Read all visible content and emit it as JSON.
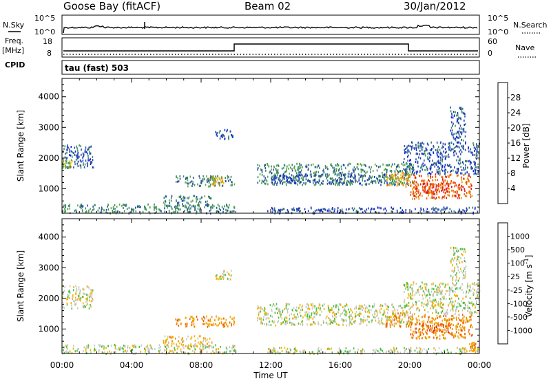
{
  "header": {
    "station": "Goose Bay (fitACF)",
    "beam": "Beam 02",
    "date": "30/Jan/2012"
  },
  "status_panels": {
    "nsky_label": "N.Sky",
    "nsky_top": "10^5",
    "nsky_bottom": "10^0",
    "nsearch_label": "N.Search",
    "nsearch_top": "10^5",
    "nsearch_bottom": "10^0",
    "freq_label": "Freq.",
    "freq_unit": "[MHz]",
    "freq_top": "18",
    "freq_bottom": "8",
    "nave_label": "Nave",
    "nave_top": "60",
    "nave_bottom": "0",
    "cpid_label": "CPID",
    "cpid_value": "tau (fast) 503"
  },
  "colors": {
    "power": [
      "#1428d2",
      "#2a4ea8",
      "#3c8a63",
      "#5aa84a",
      "#e8c000",
      "#f09000",
      "#e85a00",
      "#e21b1b"
    ],
    "velocity": [
      "#e21b1b",
      "#f05a00",
      "#f09000",
      "#f0b000",
      "#c8c8c0",
      "#44c040",
      "#3a8060",
      "#2a4ea8",
      "#1428d2"
    ]
  },
  "chart_data": [
    {
      "type": "heatmap",
      "name": "power",
      "ylabel": "Slant Range [km]",
      "yticks": [
        "1000",
        "2000",
        "3000",
        "4000"
      ],
      "ylim": [
        200,
        4600
      ],
      "xlim": [
        0,
        24
      ],
      "colorbar_label": "Power [dB]",
      "colorbar_ticks": [
        "4",
        "8",
        "12",
        "16",
        "20",
        "24",
        "28"
      ],
      "echo_regions": [
        {
          "t0": 0.0,
          "t1": 1.8,
          "r0": 1700,
          "r1": 2450,
          "level": 1
        },
        {
          "t0": 0.0,
          "t1": 0.6,
          "r0": 1700,
          "r1": 2000,
          "level": 3
        },
        {
          "t0": 6.5,
          "t1": 9.9,
          "r0": 1100,
          "r1": 1450,
          "level": 2
        },
        {
          "t0": 8.4,
          "t1": 9.3,
          "r0": 1150,
          "r1": 1400,
          "level": 4
        },
        {
          "t0": 5.8,
          "t1": 8.6,
          "r0": 450,
          "r1": 800,
          "level": 2
        },
        {
          "t0": 0.0,
          "t1": 10.0,
          "r0": 220,
          "r1": 520,
          "level": 2
        },
        {
          "t0": 8.8,
          "t1": 9.8,
          "r0": 2650,
          "r1": 2950,
          "level": 1
        },
        {
          "t0": 11.2,
          "t1": 20.2,
          "r0": 1150,
          "r1": 1850,
          "level": 2
        },
        {
          "t0": 12.0,
          "t1": 19.0,
          "r0": 1200,
          "r1": 1500,
          "level": 1
        },
        {
          "t0": 18.6,
          "t1": 20.0,
          "r0": 1100,
          "r1": 1550,
          "level": 5
        },
        {
          "t0": 20.0,
          "t1": 23.6,
          "r0": 700,
          "r1": 1500,
          "level": 6
        },
        {
          "t0": 20.3,
          "t1": 22.3,
          "r0": 850,
          "r1": 1200,
          "level": 7
        },
        {
          "t0": 19.6,
          "t1": 24.0,
          "r0": 1500,
          "r1": 2550,
          "level": 1
        },
        {
          "t0": 22.3,
          "t1": 23.2,
          "r0": 2600,
          "r1": 3700,
          "level": 1
        },
        {
          "t0": 11.8,
          "t1": 24.0,
          "r0": 220,
          "r1": 420,
          "level": 1
        }
      ]
    },
    {
      "type": "heatmap",
      "name": "velocity",
      "ylabel": "Slant Range [km]",
      "yticks": [
        "1000",
        "2000",
        "3000",
        "4000"
      ],
      "ylim": [
        200,
        4600
      ],
      "xlim": [
        0,
        24
      ],
      "xticks": [
        "00:00",
        "04:00",
        "08:00",
        "12:00",
        "16:00",
        "20:00",
        "00:00"
      ],
      "xlabel": "Time UT",
      "colorbar_label": "Velocity [m s^-1]",
      "colorbar_ticks": [
        "1000",
        "500",
        "100",
        "25",
        "-25",
        "-100",
        "-500",
        "-1000"
      ],
      "echo_regions": [
        {
          "t0": 0.0,
          "t1": 1.8,
          "r0": 1700,
          "r1": 2450,
          "level": 4
        },
        {
          "t0": 6.5,
          "t1": 9.9,
          "r0": 1100,
          "r1": 1450,
          "level": 2
        },
        {
          "t0": 5.8,
          "t1": 8.6,
          "r0": 450,
          "r1": 800,
          "level": 3
        },
        {
          "t0": 0.0,
          "t1": 10.0,
          "r0": 220,
          "r1": 520,
          "level": 4
        },
        {
          "t0": 8.8,
          "t1": 9.8,
          "r0": 2650,
          "r1": 2950,
          "level": 4
        },
        {
          "t0": 11.2,
          "t1": 20.2,
          "r0": 1150,
          "r1": 1850,
          "level": 4
        },
        {
          "t0": 18.6,
          "t1": 20.0,
          "r0": 1100,
          "r1": 1550,
          "level": 2
        },
        {
          "t0": 20.0,
          "t1": 23.6,
          "r0": 700,
          "r1": 1500,
          "level": 2
        },
        {
          "t0": 20.3,
          "t1": 22.3,
          "r0": 850,
          "r1": 1200,
          "level": 1
        },
        {
          "t0": 19.6,
          "t1": 24.0,
          "r0": 1500,
          "r1": 2550,
          "level": 4
        },
        {
          "t0": 22.3,
          "t1": 23.2,
          "r0": 2600,
          "r1": 3700,
          "level": 4
        },
        {
          "t0": 23.4,
          "t1": 23.8,
          "r0": 300,
          "r1": 600,
          "level": 2
        },
        {
          "t0": 11.8,
          "t1": 24.0,
          "r0": 220,
          "r1": 420,
          "level": 4
        }
      ]
    }
  ]
}
